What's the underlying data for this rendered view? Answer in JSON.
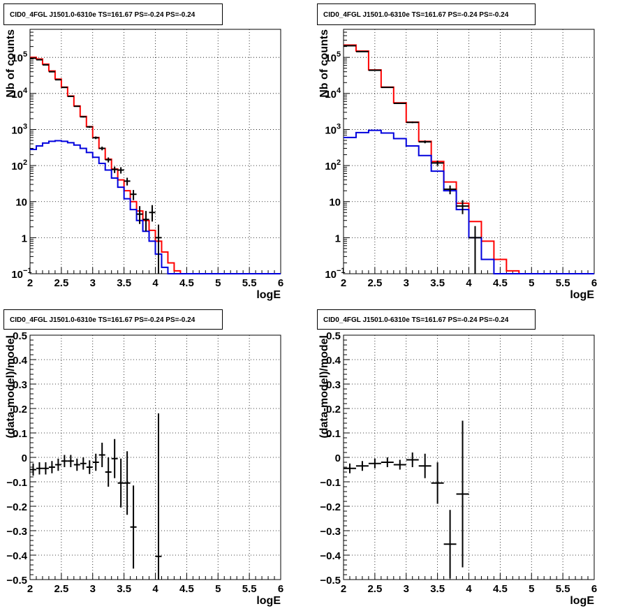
{
  "colors": {
    "data": "#000000",
    "model_total": "#ff0000",
    "model_source": "#0000dd",
    "grid": "#000000"
  },
  "chart_data": [
    {
      "type": "line",
      "title": "CID0_4FGL J1501.0-6310e TS=161.67 PS=-0.24 PS=-0.24",
      "xlabel": "logE",
      "ylabel": "Nb of counts",
      "log_y": true,
      "xlim": [
        2,
        6
      ],
      "ylim": [
        0.1,
        600000
      ],
      "grid": true,
      "x_ticks": [
        "2",
        "2.5",
        "3",
        "3.5",
        "4",
        "4.5",
        "5",
        "5.5",
        "6"
      ],
      "y_ticks": [
        {
          "value": 0.1,
          "label": "10",
          "exp": "−1"
        },
        {
          "value": 1,
          "label": "1",
          "exp": ""
        },
        {
          "value": 10,
          "label": "10",
          "exp": ""
        },
        {
          "value": 100,
          "label": "10",
          "exp": "2"
        },
        {
          "value": 1000,
          "label": "10",
          "exp": "3"
        },
        {
          "value": 10000,
          "label": "10",
          "exp": "4"
        },
        {
          "value": 100000,
          "label": "10",
          "exp": "5"
        }
      ],
      "bin_width": 0.1,
      "series": [
        {
          "role": "model_total",
          "x_start": 2.0,
          "values": [
            100000,
            90000,
            65000,
            42000,
            25000,
            15000,
            8500,
            4500,
            2300,
            1200,
            600,
            300,
            150,
            80,
            40,
            20,
            10,
            5.5,
            3,
            1.6,
            0.8,
            0.4,
            0.2,
            0.12,
            0.1,
            0.1,
            0.1,
            0.1,
            0.1,
            0.1,
            0.1,
            0.1,
            0.1,
            0.1,
            0.1,
            0.1,
            0.1,
            0.1,
            0.1,
            0.1
          ]
        },
        {
          "role": "model_source",
          "x_start": 2.0,
          "values": [
            280,
            350,
            420,
            470,
            490,
            470,
            430,
            370,
            300,
            230,
            170,
            115,
            75,
            45,
            25,
            12,
            6,
            3,
            1.5,
            0.8,
            0.35,
            0.15,
            0.1,
            0.1,
            0.1,
            0.1,
            0.1,
            0.1,
            0.1,
            0.1,
            0.1,
            0.1,
            0.1,
            0.1,
            0.1,
            0.1,
            0.1,
            0.1,
            0.1,
            0.1
          ]
        }
      ],
      "data_points": [
        {
          "x": 2.05,
          "y": 95000,
          "lo": 94000,
          "hi": 96000
        },
        {
          "x": 2.15,
          "y": 86000,
          "lo": 85000,
          "hi": 87000
        },
        {
          "x": 2.25,
          "y": 62000,
          "lo": 61200,
          "hi": 62800
        },
        {
          "x": 2.35,
          "y": 40000,
          "lo": 39400,
          "hi": 40600
        },
        {
          "x": 2.45,
          "y": 24000,
          "lo": 23500,
          "hi": 24500
        },
        {
          "x": 2.55,
          "y": 14700,
          "lo": 14400,
          "hi": 15000
        },
        {
          "x": 2.65,
          "y": 8300,
          "lo": 8100,
          "hi": 8500
        },
        {
          "x": 2.75,
          "y": 4400,
          "lo": 4250,
          "hi": 4550
        },
        {
          "x": 2.85,
          "y": 2250,
          "lo": 2150,
          "hi": 2350
        },
        {
          "x": 2.95,
          "y": 1180,
          "lo": 1110,
          "hi": 1250
        },
        {
          "x": 3.05,
          "y": 590,
          "lo": 540,
          "hi": 640
        },
        {
          "x": 3.15,
          "y": 300,
          "lo": 265,
          "hi": 335
        },
        {
          "x": 3.25,
          "y": 145,
          "lo": 122,
          "hi": 168
        },
        {
          "x": 3.35,
          "y": 78,
          "lo": 62,
          "hi": 94
        },
        {
          "x": 3.45,
          "y": 75,
          "lo": 60,
          "hi": 90
        },
        {
          "x": 3.55,
          "y": 37,
          "lo": 28,
          "hi": 46
        },
        {
          "x": 3.65,
          "y": 16,
          "lo": 11,
          "hi": 21
        },
        {
          "x": 3.75,
          "y": 4.5,
          "lo": 2.4,
          "hi": 7.5
        },
        {
          "x": 3.85,
          "y": 3.2,
          "lo": 1.5,
          "hi": 5.5
        },
        {
          "x": 3.95,
          "y": 5,
          "lo": 2.8,
          "hi": 8
        },
        {
          "x": 4.05,
          "y": 1,
          "lo": 0.1,
          "hi": 2.3
        }
      ]
    },
    {
      "type": "line",
      "title": "CID0_4FGL J1501.0-6310e TS=161.67 PS=-0.24 PS=-0.24",
      "xlabel": "logE",
      "ylabel": "Nb of counts",
      "log_y": true,
      "xlim": [
        2,
        6
      ],
      "ylim": [
        0.1,
        600000
      ],
      "grid": true,
      "x_ticks": [
        "2",
        "2.5",
        "3",
        "3.5",
        "4",
        "4.5",
        "5",
        "5.5",
        "6"
      ],
      "y_ticks": [
        {
          "value": 0.1,
          "label": "10",
          "exp": "−1"
        },
        {
          "value": 1,
          "label": "1",
          "exp": ""
        },
        {
          "value": 10,
          "label": "10",
          "exp": ""
        },
        {
          "value": 100,
          "label": "10",
          "exp": "2"
        },
        {
          "value": 1000,
          "label": "10",
          "exp": "3"
        },
        {
          "value": 10000,
          "label": "10",
          "exp": "4"
        },
        {
          "value": 100000,
          "label": "10",
          "exp": "5"
        }
      ],
      "bin_width": 0.2,
      "series": [
        {
          "role": "model_total",
          "x_start": 2.0,
          "values": [
            220000,
            150000,
            45000,
            15000,
            5500,
            1600,
            470,
            130,
            35,
            9,
            2.8,
            0.8,
            0.25,
            0.12,
            0.1,
            0.1,
            0.1,
            0.1,
            0.1,
            0.1
          ]
        },
        {
          "role": "model_source",
          "x_start": 2.0,
          "values": [
            600,
            820,
            950,
            800,
            560,
            350,
            190,
            70,
            20,
            6,
            1,
            0.25,
            0.1,
            0.1,
            0.1,
            0.1,
            0.1,
            0.1,
            0.1,
            0.1
          ]
        }
      ],
      "data_points": [
        {
          "x": 2.1,
          "y": 210000,
          "lo": 208000,
          "hi": 212000
        },
        {
          "x": 2.3,
          "y": 145000,
          "lo": 143500,
          "hi": 146500
        },
        {
          "x": 2.5,
          "y": 44000,
          "lo": 43300,
          "hi": 44700
        },
        {
          "x": 2.7,
          "y": 14700,
          "lo": 14400,
          "hi": 15000
        },
        {
          "x": 2.9,
          "y": 5300,
          "lo": 5150,
          "hi": 5450
        },
        {
          "x": 3.1,
          "y": 1580,
          "lo": 1500,
          "hi": 1660
        },
        {
          "x": 3.3,
          "y": 455,
          "lo": 415,
          "hi": 495
        },
        {
          "x": 3.5,
          "y": 118,
          "lo": 98,
          "hi": 138
        },
        {
          "x": 3.7,
          "y": 22,
          "lo": 16,
          "hi": 28
        },
        {
          "x": 3.9,
          "y": 7.5,
          "lo": 4.5,
          "hi": 11
        },
        {
          "x": 4.1,
          "y": 1,
          "lo": 0.1,
          "hi": 2.1
        }
      ]
    },
    {
      "type": "scatter",
      "title": "CID0_4FGL J1501.0-6310e TS=161.67 PS=-0.24 PS=-0.24",
      "xlabel": "logE",
      "ylabel": "(data-model)/model",
      "log_y": false,
      "xlim": [
        2,
        6
      ],
      "ylim": [
        -0.5,
        0.5
      ],
      "grid": true,
      "x_ticks": [
        "2",
        "2.5",
        "3",
        "3.5",
        "4",
        "4.5",
        "5",
        "5.5",
        "6"
      ],
      "y_ticks": [
        {
          "value": 0.5,
          "label": "0.5"
        },
        {
          "value": 0.4,
          "label": "0.4"
        },
        {
          "value": 0.3,
          "label": "0.3"
        },
        {
          "value": 0.2,
          "label": "0.2"
        },
        {
          "value": 0.1,
          "label": "0.1"
        },
        {
          "value": 0,
          "label": "0"
        },
        {
          "value": -0.1,
          "label": "−0.1"
        },
        {
          "value": -0.2,
          "label": "−0.2"
        },
        {
          "value": -0.3,
          "label": "−0.3"
        },
        {
          "value": -0.4,
          "label": "−0.4"
        },
        {
          "value": -0.5,
          "label": "−0.5"
        }
      ],
      "half_width": 0.05,
      "data_points": [
        {
          "x": 2.05,
          "y": -0.05,
          "err": 0.025
        },
        {
          "x": 2.15,
          "y": -0.045,
          "err": 0.025
        },
        {
          "x": 2.25,
          "y": -0.045,
          "err": 0.025
        },
        {
          "x": 2.35,
          "y": -0.04,
          "err": 0.025
        },
        {
          "x": 2.45,
          "y": -0.03,
          "err": 0.025
        },
        {
          "x": 2.55,
          "y": -0.015,
          "err": 0.025
        },
        {
          "x": 2.65,
          "y": -0.015,
          "err": 0.025
        },
        {
          "x": 2.75,
          "y": -0.03,
          "err": 0.025
        },
        {
          "x": 2.85,
          "y": -0.025,
          "err": 0.025
        },
        {
          "x": 2.95,
          "y": -0.04,
          "err": 0.028
        },
        {
          "x": 3.05,
          "y": -0.02,
          "err": 0.035
        },
        {
          "x": 3.15,
          "y": 0.01,
          "err": 0.05
        },
        {
          "x": 3.25,
          "y": -0.06,
          "err": 0.06
        },
        {
          "x": 3.35,
          "y": -0.005,
          "err": 0.08
        },
        {
          "x": 3.45,
          "y": -0.105,
          "err": 0.1
        },
        {
          "x": 3.55,
          "y": -0.105,
          "err": 0.13
        },
        {
          "x": 3.65,
          "y": -0.285,
          "err": 0.17
        },
        {
          "x": 4.05,
          "y": -0.405,
          "err": 0.585
        }
      ]
    },
    {
      "type": "scatter",
      "title": "CID0_4FGL J1501.0-6310e TS=161.67 PS=-0.24 PS=-0.24",
      "xlabel": "logE",
      "ylabel": "(data-model)/model",
      "log_y": false,
      "xlim": [
        2,
        6
      ],
      "ylim": [
        -0.5,
        0.5
      ],
      "grid": true,
      "x_ticks": [
        "2",
        "2.5",
        "3",
        "3.5",
        "4",
        "4.5",
        "5",
        "5.5",
        "6"
      ],
      "y_ticks": [
        {
          "value": 0.5,
          "label": "0.5"
        },
        {
          "value": 0.4,
          "label": "0.4"
        },
        {
          "value": 0.3,
          "label": "0.3"
        },
        {
          "value": 0.2,
          "label": "0.2"
        },
        {
          "value": 0.1,
          "label": "0.1"
        },
        {
          "value": 0,
          "label": "0"
        },
        {
          "value": -0.1,
          "label": "−0.1"
        },
        {
          "value": -0.2,
          "label": "−0.2"
        },
        {
          "value": -0.3,
          "label": "−0.3"
        },
        {
          "value": -0.4,
          "label": "−0.4"
        },
        {
          "value": -0.5,
          "label": "−0.5"
        }
      ],
      "half_width": 0.1,
      "data_points": [
        {
          "x": 2.1,
          "y": -0.045,
          "err": 0.02
        },
        {
          "x": 2.3,
          "y": -0.035,
          "err": 0.02
        },
        {
          "x": 2.5,
          "y": -0.025,
          "err": 0.02
        },
        {
          "x": 2.7,
          "y": -0.02,
          "err": 0.02
        },
        {
          "x": 2.9,
          "y": -0.03,
          "err": 0.02
        },
        {
          "x": 3.1,
          "y": -0.01,
          "err": 0.03
        },
        {
          "x": 3.3,
          "y": -0.035,
          "err": 0.05
        },
        {
          "x": 3.5,
          "y": -0.105,
          "err": 0.085
        },
        {
          "x": 3.7,
          "y": -0.355,
          "err": 0.14
        },
        {
          "x": 3.9,
          "y": -0.15,
          "err": 0.3
        }
      ]
    }
  ]
}
